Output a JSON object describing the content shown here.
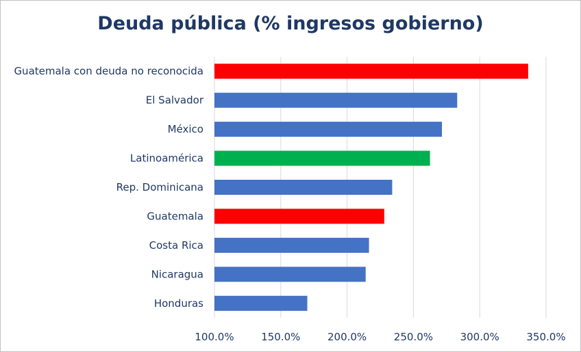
{
  "chart_data": {
    "type": "bar",
    "orientation": "horizontal",
    "title": "Deuda pública (% ingresos gobierno)",
    "categories": [
      "Guatemala con deuda no reconocida",
      "El Salvador",
      "México",
      "Latinoamérica",
      "Rep. Dominicana",
      "Guatemala",
      "Costa Rica",
      "Nicaragua",
      "Honduras"
    ],
    "values": [
      336.5,
      283.0,
      271.5,
      262.5,
      234.0,
      228.0,
      216.5,
      214.0,
      170.0
    ],
    "bar_colors": [
      "#ff0000",
      "#4472c4",
      "#4472c4",
      "#00b050",
      "#4472c4",
      "#ff0000",
      "#4472c4",
      "#4472c4",
      "#4472c4"
    ],
    "xlim": [
      100,
      350
    ],
    "x_ticks": [
      100,
      150,
      200,
      250,
      300,
      350
    ],
    "x_tick_labels": [
      "100.0%",
      "150.0%",
      "200.0%",
      "250.0%",
      "300.0%",
      "350.0%"
    ],
    "grid": true,
    "legend": "none"
  }
}
